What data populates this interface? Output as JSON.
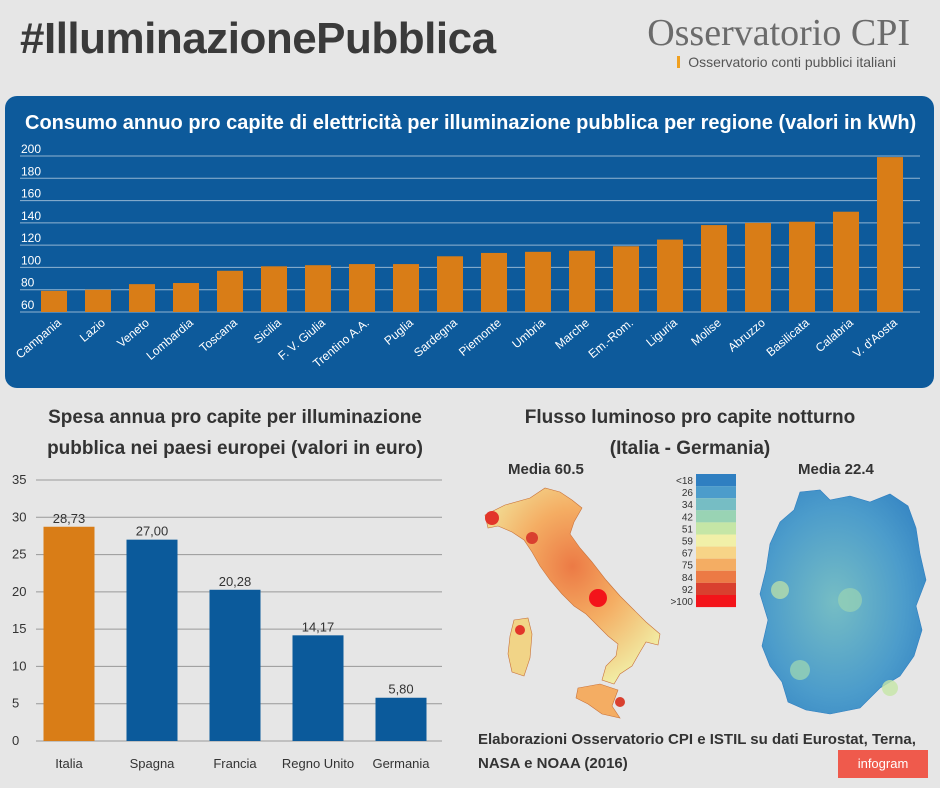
{
  "header": {
    "title": "#IlluminazionePubblica",
    "logo_name": "Osservatorio CPI",
    "logo_tagline": "Osservatorio conti pubblici italiani"
  },
  "colors": {
    "panel": "#0d5a9b",
    "highlight": "#d97d17",
    "blue": "#0b5a9b"
  },
  "chart_data": [
    {
      "type": "bar",
      "title": "Consumo annuo pro capite di elettricità per illuminazione pubblica per regione (valori in kWh)",
      "categories": [
        "Campania",
        "Lazio",
        "Veneto",
        "Lombardia",
        "Toscana",
        "Sicilia",
        "F. V. Giulia",
        "Trentino A.A.",
        "Puglia",
        "Sardegna",
        "Piemonte",
        "Umbria",
        "Marche",
        "Em.-Rom.",
        "Liguria",
        "Molise",
        "Abruzzo",
        "Basilicata",
        "Calabria",
        "V. d'Aosta"
      ],
      "values": [
        79,
        80,
        85,
        86,
        97,
        101,
        102,
        103,
        103,
        110,
        113,
        114,
        115,
        119,
        125,
        138,
        140,
        141,
        150,
        199
      ],
      "yticks": [
        60,
        80,
        100,
        120,
        140,
        160,
        180,
        200
      ],
      "ylim": [
        60,
        200
      ],
      "grid": true
    },
    {
      "type": "bar",
      "title_line1": "Spesa annua pro capite per illuminazione",
      "title_line2": "pubblica nei paesi europei (valori in euro)",
      "categories": [
        "Italia",
        "Spagna",
        "Francia",
        "Regno Unito",
        "Germania"
      ],
      "values": [
        28.73,
        27.0,
        20.28,
        14.17,
        5.8
      ],
      "data_labels": [
        "28,73",
        "27,00",
        "20,28",
        "14,17",
        "5,80"
      ],
      "yticks": [
        0,
        5,
        10,
        15,
        20,
        25,
        30,
        35
      ],
      "ylim": [
        0,
        35
      ],
      "grid": true
    }
  ],
  "maps": {
    "title_line1": "Flusso luminoso pro capite notturno",
    "title_line2": "(Italia - Germania)",
    "italy_label": "Media 60.5",
    "germany_label": "Media 22.4",
    "legend": [
      {
        "label": "<18",
        "color": "#2f7fc1"
      },
      {
        "label": "26",
        "color": "#4c9ccb"
      },
      {
        "label": "34",
        "color": "#76bdc4"
      },
      {
        "label": "42",
        "color": "#99d3b4"
      },
      {
        "label": "51",
        "color": "#c5e6a6"
      },
      {
        "label": "59",
        "color": "#f1f0a8"
      },
      {
        "label": "67",
        "color": "#f7d487"
      },
      {
        "label": "75",
        "color": "#f4ad63"
      },
      {
        "label": "84",
        "color": "#ec7a45"
      },
      {
        "label": "92",
        "color": "#d9402f"
      },
      {
        "label": ">100",
        "color": "#f3141a"
      }
    ]
  },
  "footer": {
    "source": "Elaborazioni Osservatorio CPI e ISTIL su dati Eurostat, Terna, NASA e NOAA (2016)",
    "badge": "infogram"
  }
}
